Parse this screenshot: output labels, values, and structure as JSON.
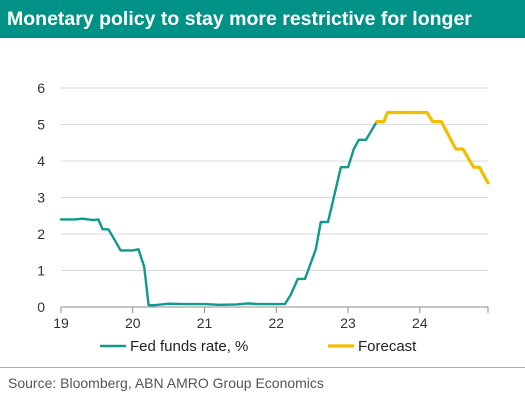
{
  "title": "Monetary policy to stay more restrictive for longer",
  "source": "Source: Bloomberg, ABN AMRO Group Economics",
  "colors": {
    "title_bg": "#009286",
    "fed": "#10998c",
    "forecast": "#f2be00"
  },
  "chart_data": {
    "type": "line",
    "title": "Monetary policy to stay more restrictive for longer",
    "xlabel": "",
    "ylabel": "",
    "xlim": [
      2019,
      2024.95
    ],
    "ylim": [
      0,
      6
    ],
    "x_ticks": [
      "19",
      "20",
      "21",
      "22",
      "23",
      "24"
    ],
    "y_ticks": [
      "0",
      "1",
      "2",
      "3",
      "4",
      "5",
      "6"
    ],
    "grid": "horizontal",
    "legend_position": "bottom",
    "series": [
      {
        "name": "Fed funds rate, %",
        "color": "#10998c",
        "points": [
          [
            2019.0,
            2.4
          ],
          [
            2019.2,
            2.4
          ],
          [
            2019.3,
            2.42
          ],
          [
            2019.45,
            2.38
          ],
          [
            2019.52,
            2.4
          ],
          [
            2019.58,
            2.13
          ],
          [
            2019.66,
            2.13
          ],
          [
            2019.75,
            1.83
          ],
          [
            2019.83,
            1.55
          ],
          [
            2019.92,
            1.55
          ],
          [
            2020.0,
            1.55
          ],
          [
            2020.08,
            1.58
          ],
          [
            2020.16,
            1.1
          ],
          [
            2020.22,
            0.05
          ],
          [
            2020.3,
            0.05
          ],
          [
            2020.5,
            0.09
          ],
          [
            2020.7,
            0.08
          ],
          [
            2021.0,
            0.08
          ],
          [
            2021.2,
            0.06
          ],
          [
            2021.45,
            0.07
          ],
          [
            2021.6,
            0.1
          ],
          [
            2021.75,
            0.08
          ],
          [
            2022.0,
            0.08
          ],
          [
            2022.12,
            0.08
          ],
          [
            2022.2,
            0.33
          ],
          [
            2022.3,
            0.77
          ],
          [
            2022.4,
            0.77
          ],
          [
            2022.55,
            1.58
          ],
          [
            2022.62,
            2.33
          ],
          [
            2022.72,
            2.33
          ],
          [
            2022.9,
            3.83
          ],
          [
            2023.0,
            3.83
          ],
          [
            2023.08,
            4.33
          ],
          [
            2023.15,
            4.58
          ],
          [
            2023.25,
            4.58
          ],
          [
            2023.4,
            5.08
          ]
        ]
      },
      {
        "name": "Forecast",
        "color": "#f2be00",
        "points": [
          [
            2023.4,
            5.08
          ],
          [
            2023.5,
            5.08
          ],
          [
            2023.55,
            5.33
          ],
          [
            2024.1,
            5.33
          ],
          [
            2024.18,
            5.08
          ],
          [
            2024.3,
            5.08
          ],
          [
            2024.5,
            4.33
          ],
          [
            2024.6,
            4.33
          ],
          [
            2024.75,
            3.83
          ],
          [
            2024.83,
            3.83
          ],
          [
            2024.95,
            3.4
          ]
        ]
      }
    ]
  }
}
